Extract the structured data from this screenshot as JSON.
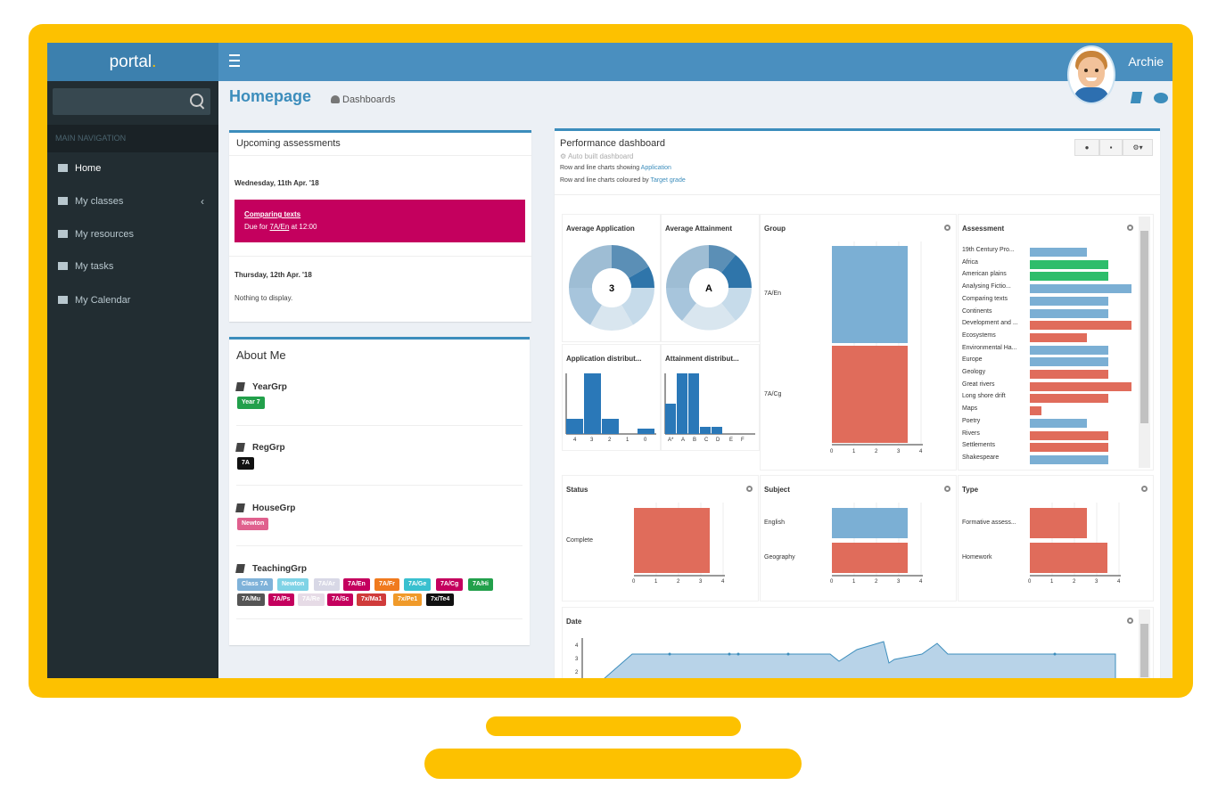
{
  "app": {
    "logo": "portal",
    "logo_dot": "."
  },
  "user": {
    "name": "Archie"
  },
  "search": {
    "placeholder": ""
  },
  "sidebar": {
    "header": "MAIN NAVIGATION",
    "items": [
      {
        "label": "Home"
      },
      {
        "label": "My classes"
      },
      {
        "label": "My resources"
      },
      {
        "label": "My tasks"
      },
      {
        "label": "My Calendar"
      }
    ]
  },
  "page": {
    "title": "Homepage",
    "breadcrumb": "Dashboards"
  },
  "upcoming": {
    "title": "Upcoming assessments",
    "day1": "Wednesday, 11th Apr. '18",
    "card_title": "Comparing texts",
    "card_due_prefix": "Due for ",
    "card_due_class": "7A/En",
    "card_due_suffix": " at 12:00",
    "day2": "Thursday, 12th Apr. '18",
    "empty": "Nothing to display."
  },
  "about": {
    "title": "About Me",
    "yeargrp_label": "YearGrp",
    "yeargrp_tag": "Year 7",
    "reggrp_label": "RegGrp",
    "reggrp_tag": "7A",
    "housegrp_label": "HouseGrp",
    "housegrp_tag": "Newton",
    "teachgrp_label": "TeachingGrp",
    "teaching_tags": [
      {
        "text": "Class 7A",
        "color": "#7fb2d9"
      },
      {
        "text": "Newton",
        "color": "#7fd3e6"
      },
      {
        "text": "7A/Ar",
        "color": "#d8d8e6"
      },
      {
        "text": "7A/En",
        "color": "#c4005e"
      },
      {
        "text": "7A/Fr",
        "color": "#f07a1e"
      },
      {
        "text": "7A/Ge",
        "color": "#39c0cf"
      },
      {
        "text": "7A/Cg",
        "color": "#c4005e"
      },
      {
        "text": "7A/Hi",
        "color": "#22a04b"
      },
      {
        "text": "7A/Mu",
        "color": "#555555"
      },
      {
        "text": "7A/Ps",
        "color": "#c4005e"
      },
      {
        "text": "7A/Re",
        "color": "#e6dbe6"
      },
      {
        "text": "7A/Sc",
        "color": "#c4005e"
      },
      {
        "text": "7x/Ma1",
        "color": "#d03b3b"
      },
      {
        "text": "7x/Pe1",
        "color": "#f09a2a"
      },
      {
        "text": "7x/Te4",
        "color": "#111111"
      }
    ]
  },
  "performance": {
    "title": "Performance dashboard",
    "subtitle": "Auto built dashboard",
    "line1_prefix": "Row and line charts showing ",
    "line1_link": "Application",
    "line2_prefix": "Row and line charts coloured by ",
    "line2_link": "Target grade"
  },
  "panels": {
    "avg_app": {
      "title": "Average Application",
      "value": "3"
    },
    "avg_att": {
      "title": "Average Attainment",
      "value": "A"
    },
    "app_dist": {
      "title": "Application distribut...",
      "ticks": [
        "4",
        "3",
        "2",
        "1",
        "0"
      ]
    },
    "att_dist": {
      "title": "Attainment distribut...",
      "ticks": [
        "A*",
        "A",
        "B",
        "C",
        "D",
        "E",
        "F"
      ]
    },
    "group": {
      "title": "Group",
      "rows": [
        "7A/En",
        "7A/Cg"
      ],
      "ticks": [
        "0",
        "1",
        "2",
        "3",
        "4"
      ]
    },
    "assessment": {
      "title": "Assessment",
      "rows": [
        "19th Century Pro...",
        "Africa",
        "American plains",
        "Analysing Fictio...",
        "Comparing texts",
        "Continents",
        "Development and ...",
        "Ecosystems",
        "Environmental Ha...",
        "Europe",
        "Geology",
        "Great rivers",
        "Long shore drift",
        "Maps",
        "Poetry",
        "Rivers",
        "Settlements",
        "Shakespeare"
      ]
    },
    "status": {
      "title": "Status",
      "rows": [
        "Complete"
      ],
      "ticks": [
        "0",
        "1",
        "2",
        "3",
        "4"
      ]
    },
    "subject": {
      "title": "Subject",
      "rows": [
        "English",
        "Geography"
      ],
      "ticks": [
        "0",
        "1",
        "2",
        "3",
        "4"
      ]
    },
    "type": {
      "title": "Type",
      "rows": [
        "Formative assess...",
        "Homework"
      ],
      "ticks": [
        "0",
        "1",
        "2",
        "3",
        "4"
      ]
    },
    "date": {
      "title": "Date",
      "ticks": [
        "4",
        "3",
        "2"
      ]
    }
  },
  "colors": {
    "blue": "#7bafd4",
    "red": "#e06c5b",
    "green": "#2ebd6b",
    "accent": "#3c8dbc"
  }
}
